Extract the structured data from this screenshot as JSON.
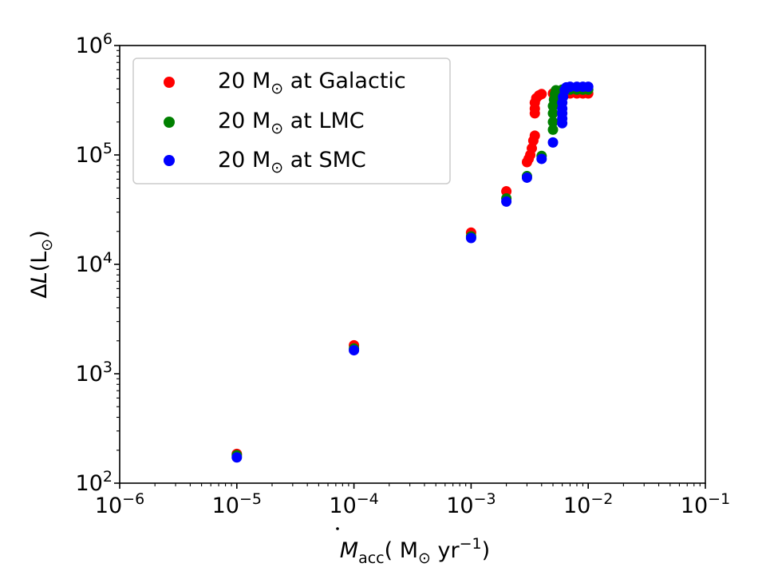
{
  "chart_data": {
    "type": "scatter",
    "xscale": "log",
    "yscale": "log",
    "xlim": [
      1e-06,
      0.1
    ],
    "ylim": [
      100,
      1000000
    ],
    "x_ticks": [
      {
        "base": "10",
        "exp": "−6"
      },
      {
        "base": "10",
        "exp": "−5"
      },
      {
        "base": "10",
        "exp": "−4"
      },
      {
        "base": "10",
        "exp": "−3"
      },
      {
        "base": "10",
        "exp": "−2"
      },
      {
        "base": "10",
        "exp": "−1"
      }
    ],
    "y_ticks": [
      {
        "base": "10",
        "exp": "2"
      },
      {
        "base": "10",
        "exp": "3"
      },
      {
        "base": "10",
        "exp": "4"
      },
      {
        "base": "10",
        "exp": "5"
      },
      {
        "base": "10",
        "exp": "6"
      }
    ],
    "xlabel": {
      "M": "M",
      "sub": "acc",
      "open": "( M",
      "sun": "⊙",
      "yr": " yr",
      "exp": "−1",
      "close": ")"
    },
    "ylabel": {
      "delta": "Δ",
      "L": "L",
      "open": "(L",
      "sun": "⊙",
      "close": ")"
    },
    "legend_position": "top-left",
    "series": [
      {
        "name": {
          "num": "20 M",
          "sun": "⊙",
          "rest": " at Galactic"
        },
        "color": "#ff0000",
        "points": [
          [
            1e-05,
            185
          ],
          [
            0.0001,
            1820
          ],
          [
            0.001,
            19500
          ],
          [
            0.002,
            46500
          ],
          [
            0.003,
            86000
          ],
          [
            0.0031,
            92000
          ],
          [
            0.0032,
            100000
          ],
          [
            0.0033,
            115000
          ],
          [
            0.0034,
            135000
          ],
          [
            0.0035,
            150000
          ],
          [
            0.0035,
            240000
          ],
          [
            0.0035,
            265000
          ],
          [
            0.0035,
            300000
          ],
          [
            0.0036,
            330000
          ],
          [
            0.0038,
            350000
          ],
          [
            0.004,
            360000
          ],
          [
            0.005,
            365000
          ],
          [
            0.006,
            365000
          ],
          [
            0.007,
            365000
          ],
          [
            0.008,
            365000
          ],
          [
            0.009,
            365000
          ],
          [
            0.01,
            365000
          ]
        ]
      },
      {
        "name": {
          "num": "20 M",
          "sun": "⊙",
          "rest": " at LMC"
        },
        "color": "#008000",
        "points": [
          [
            1e-05,
            180
          ],
          [
            0.0001,
            1700
          ],
          [
            0.001,
            18000
          ],
          [
            0.002,
            40000
          ],
          [
            0.003,
            64000
          ],
          [
            0.004,
            98000
          ],
          [
            0.005,
            170000
          ],
          [
            0.005,
            200000
          ],
          [
            0.005,
            240000
          ],
          [
            0.005,
            280000
          ],
          [
            0.0051,
            320000
          ],
          [
            0.0052,
            360000
          ],
          [
            0.0053,
            390000
          ],
          [
            0.006,
            395000
          ],
          [
            0.007,
            395000
          ],
          [
            0.008,
            395000
          ],
          [
            0.009,
            395000
          ],
          [
            0.01,
            395000
          ]
        ]
      },
      {
        "name": {
          "num": "20 M",
          "sun": "⊙",
          "rest": " at SMC"
        },
        "color": "#0000ff",
        "points": [
          [
            1e-05,
            172
          ],
          [
            0.0001,
            1640
          ],
          [
            0.001,
            17400
          ],
          [
            0.002,
            37500
          ],
          [
            0.003,
            62000
          ],
          [
            0.004,
            92000
          ],
          [
            0.005,
            130000
          ],
          [
            0.006,
            195000
          ],
          [
            0.006,
            215000
          ],
          [
            0.006,
            240000
          ],
          [
            0.006,
            265000
          ],
          [
            0.006,
            300000
          ],
          [
            0.0061,
            340000
          ],
          [
            0.0063,
            390000
          ],
          [
            0.0065,
            415000
          ],
          [
            0.007,
            420000
          ],
          [
            0.008,
            420000
          ],
          [
            0.009,
            420000
          ],
          [
            0.01,
            420000
          ]
        ]
      }
    ]
  }
}
